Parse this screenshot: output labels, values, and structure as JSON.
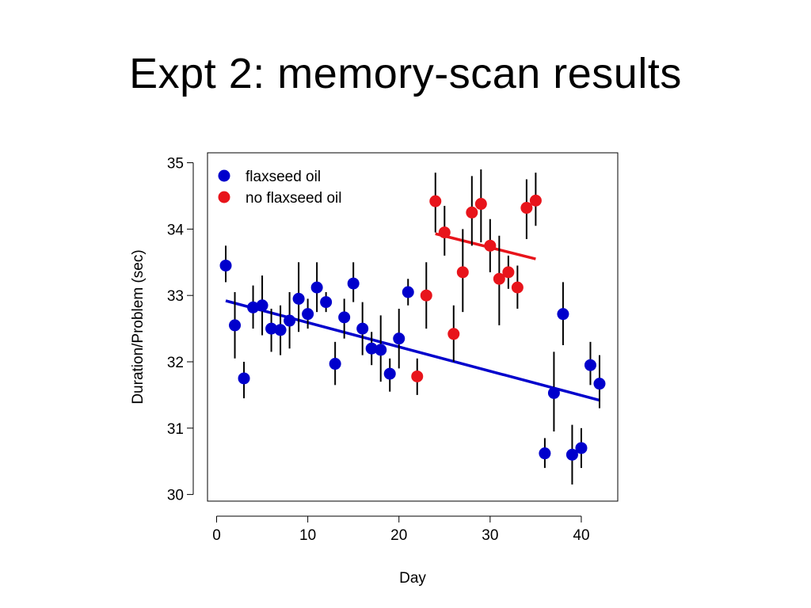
{
  "slide": {
    "title": "Expt 2: memory-scan results"
  },
  "chart_data": {
    "type": "scatter",
    "xlabel": "Day",
    "ylabel": "Duration/Problem (sec)",
    "xlim": [
      -1,
      44
    ],
    "ylim": [
      29.9,
      35.15
    ],
    "xticks": [
      0,
      10,
      20,
      30,
      40
    ],
    "yticks": [
      30,
      31,
      32,
      33,
      34,
      35
    ],
    "grid": false,
    "legend_position": "top-left",
    "series": [
      {
        "name": "flaxseed oil",
        "color": "#0000cc",
        "points": [
          {
            "x": 1,
            "y": 33.45,
            "lo": 33.2,
            "hi": 33.75
          },
          {
            "x": 2,
            "y": 32.55,
            "lo": 32.05,
            "hi": 33.05
          },
          {
            "x": 3,
            "y": 31.75,
            "lo": 31.45,
            "hi": 32.0
          },
          {
            "x": 4,
            "y": 32.82,
            "lo": 32.5,
            "hi": 33.15
          },
          {
            "x": 5,
            "y": 32.85,
            "lo": 32.4,
            "hi": 33.3
          },
          {
            "x": 6,
            "y": 32.5,
            "lo": 32.15,
            "hi": 32.8
          },
          {
            "x": 7,
            "y": 32.48,
            "lo": 32.1,
            "hi": 32.85
          },
          {
            "x": 8,
            "y": 32.62,
            "lo": 32.2,
            "hi": 33.05
          },
          {
            "x": 9,
            "y": 32.95,
            "lo": 32.45,
            "hi": 33.5
          },
          {
            "x": 10,
            "y": 32.72,
            "lo": 32.5,
            "hi": 32.95
          },
          {
            "x": 11,
            "y": 33.12,
            "lo": 32.75,
            "hi": 33.5
          },
          {
            "x": 12,
            "y": 32.9,
            "lo": 32.75,
            "hi": 33.05
          },
          {
            "x": 13,
            "y": 31.97,
            "lo": 31.65,
            "hi": 32.3
          },
          {
            "x": 14,
            "y": 32.67,
            "lo": 32.35,
            "hi": 32.95
          },
          {
            "x": 15,
            "y": 33.18,
            "lo": 32.9,
            "hi": 33.5
          },
          {
            "x": 16,
            "y": 32.5,
            "lo": 32.1,
            "hi": 32.9
          },
          {
            "x": 17,
            "y": 32.2,
            "lo": 31.95,
            "hi": 32.45
          },
          {
            "x": 18,
            "y": 32.18,
            "lo": 31.7,
            "hi": 32.7
          },
          {
            "x": 19,
            "y": 31.82,
            "lo": 31.55,
            "hi": 32.05
          },
          {
            "x": 20,
            "y": 32.35,
            "lo": 31.9,
            "hi": 32.8
          },
          {
            "x": 21,
            "y": 33.05,
            "lo": 32.85,
            "hi": 33.25
          },
          {
            "x": 36,
            "y": 30.62,
            "lo": 30.4,
            "hi": 30.85
          },
          {
            "x": 37,
            "y": 31.53,
            "lo": 30.95,
            "hi": 32.15
          },
          {
            "x": 38,
            "y": 32.72,
            "lo": 32.25,
            "hi": 33.2
          },
          {
            "x": 39,
            "y": 30.6,
            "lo": 30.15,
            "hi": 31.05
          },
          {
            "x": 40,
            "y": 30.7,
            "lo": 30.4,
            "hi": 31.0
          },
          {
            "x": 41,
            "y": 31.95,
            "lo": 31.65,
            "hi": 32.3
          },
          {
            "x": 42,
            "y": 31.67,
            "lo": 31.3,
            "hi": 32.1
          }
        ],
        "fit_line": {
          "x1": 1,
          "y1": 32.92,
          "x2": 42,
          "y2": 31.42
        }
      },
      {
        "name": "no flaxseed oil",
        "color": "#e8141b",
        "points": [
          {
            "x": 22,
            "y": 31.78,
            "lo": 31.5,
            "hi": 32.05
          },
          {
            "x": 23,
            "y": 33.0,
            "lo": 32.5,
            "hi": 33.5
          },
          {
            "x": 24,
            "y": 34.42,
            "lo": 33.95,
            "hi": 34.85
          },
          {
            "x": 25,
            "y": 33.95,
            "lo": 33.6,
            "hi": 34.35
          },
          {
            "x": 26,
            "y": 32.42,
            "lo": 32.0,
            "hi": 32.85
          },
          {
            "x": 27,
            "y": 33.35,
            "lo": 32.75,
            "hi": 34.0
          },
          {
            "x": 28,
            "y": 34.25,
            "lo": 33.75,
            "hi": 34.8
          },
          {
            "x": 29,
            "y": 34.38,
            "lo": 33.8,
            "hi": 34.9
          },
          {
            "x": 30,
            "y": 33.75,
            "lo": 33.35,
            "hi": 34.15
          },
          {
            "x": 31,
            "y": 33.25,
            "lo": 32.55,
            "hi": 33.9
          },
          {
            "x": 32,
            "y": 33.35,
            "lo": 33.1,
            "hi": 33.6
          },
          {
            "x": 33,
            "y": 33.12,
            "lo": 32.8,
            "hi": 33.45
          },
          {
            "x": 34,
            "y": 34.32,
            "lo": 33.85,
            "hi": 34.75
          },
          {
            "x": 35,
            "y": 34.43,
            "lo": 34.05,
            "hi": 34.85
          }
        ],
        "fit_line": {
          "x1": 24,
          "y1": 33.93,
          "x2": 35,
          "y2": 33.55
        }
      }
    ]
  }
}
